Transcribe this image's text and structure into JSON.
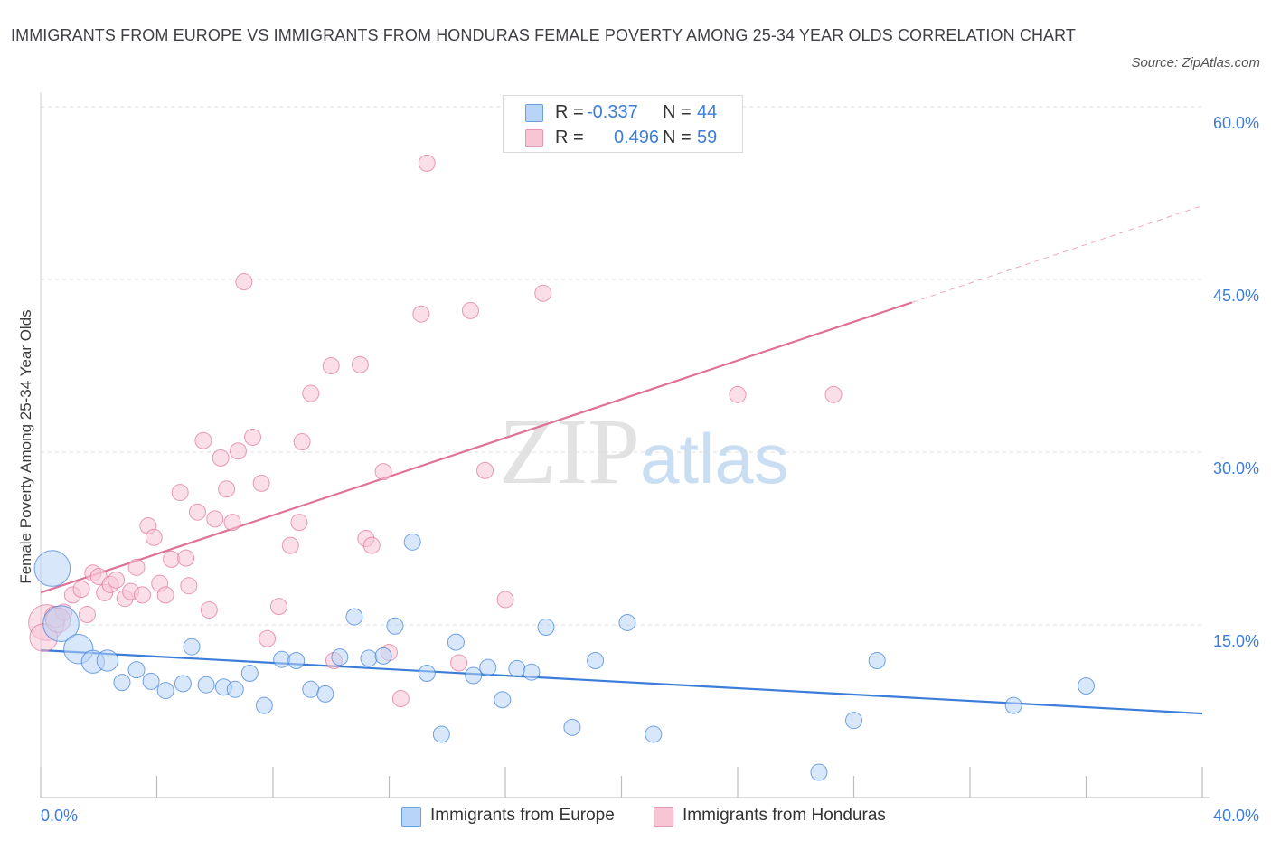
{
  "title": "IMMIGRANTS FROM EUROPE VS IMMIGRANTS FROM HONDURAS FEMALE POVERTY AMONG 25-34 YEAR OLDS CORRELATION CHART",
  "source": "Source: ZipAtlas.com",
  "watermark": {
    "zip": "ZIP",
    "atlas": "atlas"
  },
  "colors": {
    "europe": "#3b7dd8",
    "europe_fill": "#b8d4f6",
    "honduras": "#e0729a",
    "honduras_fill": "#f8c5d5",
    "axis_text": "#3d7dd8"
  },
  "stats": [
    {
      "r_label": "R =",
      "r_value": "-0.337",
      "n_label": "N =",
      "n_value": "44"
    },
    {
      "r_label": "R =",
      "r_value": "0.496",
      "n_label": "N =",
      "n_value": "59"
    }
  ],
  "legend": [
    "Immigrants from Europe",
    "Immigrants from Honduras"
  ],
  "chart_data": {
    "type": "scatter",
    "title": "IMMIGRANTS FROM EUROPE VS IMMIGRANTS FROM HONDURAS FEMALE POVERTY AMONG 25-34 YEAR OLDS CORRELATION CHART",
    "xlabel": "",
    "ylabel": "Female Poverty Among 25-34 Year Olds",
    "xlim": [
      0,
      40
    ],
    "ylim": [
      0,
      60
    ],
    "x_tick_labels": [
      "0.0%",
      "40.0%"
    ],
    "y_ticks": [
      15,
      30,
      45,
      60
    ],
    "y_tick_labels": [
      "15.0%",
      "30.0%",
      "45.0%",
      "60.0%"
    ],
    "grid": true,
    "legend_position": "bottom",
    "series": [
      {
        "name": "Immigrants from Europe",
        "trendline": {
          "x": [
            0,
            40
          ],
          "y": [
            12.8,
            7.3
          ]
        },
        "points": [
          {
            "x": 0.4,
            "y": 19.9,
            "s": 2.2
          },
          {
            "x": 0.7,
            "y": 15.1,
            "s": 2.2
          },
          {
            "x": 1.3,
            "y": 12.9,
            "s": 1.8
          },
          {
            "x": 1.8,
            "y": 11.8,
            "s": 1.4
          },
          {
            "x": 2.3,
            "y": 11.9,
            "s": 1.3
          },
          {
            "x": 2.8,
            "y": 10.0,
            "s": 1
          },
          {
            "x": 3.3,
            "y": 11.1,
            "s": 1
          },
          {
            "x": 3.8,
            "y": 10.1,
            "s": 1
          },
          {
            "x": 4.3,
            "y": 9.3,
            "s": 1
          },
          {
            "x": 4.9,
            "y": 9.9,
            "s": 1
          },
          {
            "x": 5.2,
            "y": 13.1,
            "s": 1
          },
          {
            "x": 5.7,
            "y": 9.8,
            "s": 1
          },
          {
            "x": 6.3,
            "y": 9.6,
            "s": 1
          },
          {
            "x": 6.7,
            "y": 9.4,
            "s": 1
          },
          {
            "x": 7.2,
            "y": 10.8,
            "s": 1
          },
          {
            "x": 7.7,
            "y": 8.0,
            "s": 1
          },
          {
            "x": 8.3,
            "y": 12.0,
            "s": 1
          },
          {
            "x": 8.8,
            "y": 11.9,
            "s": 1
          },
          {
            "x": 9.3,
            "y": 9.4,
            "s": 1
          },
          {
            "x": 9.8,
            "y": 9.0,
            "s": 1
          },
          {
            "x": 10.3,
            "y": 12.2,
            "s": 1
          },
          {
            "x": 10.8,
            "y": 15.7,
            "s": 1
          },
          {
            "x": 11.3,
            "y": 12.1,
            "s": 1
          },
          {
            "x": 11.8,
            "y": 12.3,
            "s": 1
          },
          {
            "x": 12.2,
            "y": 14.9,
            "s": 1
          },
          {
            "x": 12.8,
            "y": 22.2,
            "s": 1
          },
          {
            "x": 13.3,
            "y": 10.8,
            "s": 1
          },
          {
            "x": 13.8,
            "y": 5.5,
            "s": 1
          },
          {
            "x": 14.3,
            "y": 13.5,
            "s": 1
          },
          {
            "x": 14.9,
            "y": 10.6,
            "s": 1
          },
          {
            "x": 15.4,
            "y": 11.3,
            "s": 1
          },
          {
            "x": 15.9,
            "y": 8.5,
            "s": 1
          },
          {
            "x": 16.4,
            "y": 11.2,
            "s": 1
          },
          {
            "x": 16.9,
            "y": 10.9,
            "s": 1
          },
          {
            "x": 17.4,
            "y": 14.8,
            "s": 1
          },
          {
            "x": 18.3,
            "y": 6.1,
            "s": 1
          },
          {
            "x": 19.1,
            "y": 11.9,
            "s": 1
          },
          {
            "x": 20.2,
            "y": 15.2,
            "s": 1
          },
          {
            "x": 21.1,
            "y": 5.5,
            "s": 1
          },
          {
            "x": 26.8,
            "y": 2.2,
            "s": 1
          },
          {
            "x": 28.0,
            "y": 6.7,
            "s": 1
          },
          {
            "x": 28.8,
            "y": 11.9,
            "s": 1
          },
          {
            "x": 33.5,
            "y": 8.0,
            "s": 1
          },
          {
            "x": 36.0,
            "y": 9.7,
            "s": 1
          }
        ]
      },
      {
        "name": "Immigrants from Honduras",
        "trendline": {
          "x": [
            0,
            30
          ],
          "y": [
            17.8,
            43.0
          ],
          "dashed_extension": {
            "x": [
              30,
              40
            ],
            "y": [
              43.0,
              51.4
            ]
          }
        },
        "points": [
          {
            "x": 0.2,
            "y": 15.2,
            "s": 2.2
          },
          {
            "x": 0.5,
            "y": 15.7,
            "s": 1.3
          },
          {
            "x": 0.8,
            "y": 16.1,
            "s": 1
          },
          {
            "x": 1.1,
            "y": 17.6,
            "s": 1
          },
          {
            "x": 1.4,
            "y": 18.1,
            "s": 1
          },
          {
            "x": 1.6,
            "y": 15.9,
            "s": 1
          },
          {
            "x": 1.8,
            "y": 19.5,
            "s": 1
          },
          {
            "x": 2.0,
            "y": 19.2,
            "s": 1
          },
          {
            "x": 2.2,
            "y": 17.8,
            "s": 1
          },
          {
            "x": 2.4,
            "y": 18.5,
            "s": 1
          },
          {
            "x": 2.6,
            "y": 18.9,
            "s": 1
          },
          {
            "x": 2.9,
            "y": 17.3,
            "s": 1
          },
          {
            "x": 3.1,
            "y": 17.9,
            "s": 1
          },
          {
            "x": 3.3,
            "y": 20.0,
            "s": 1
          },
          {
            "x": 3.5,
            "y": 17.6,
            "s": 1
          },
          {
            "x": 3.7,
            "y": 23.6,
            "s": 1
          },
          {
            "x": 3.9,
            "y": 22.6,
            "s": 1
          },
          {
            "x": 4.1,
            "y": 18.6,
            "s": 1
          },
          {
            "x": 4.3,
            "y": 17.6,
            "s": 1
          },
          {
            "x": 4.5,
            "y": 20.7,
            "s": 1
          },
          {
            "x": 4.8,
            "y": 26.5,
            "s": 1
          },
          {
            "x": 5.0,
            "y": 20.8,
            "s": 1
          },
          {
            "x": 5.1,
            "y": 18.4,
            "s": 1
          },
          {
            "x": 5.4,
            "y": 24.8,
            "s": 1
          },
          {
            "x": 5.6,
            "y": 31.0,
            "s": 1
          },
          {
            "x": 5.8,
            "y": 16.3,
            "s": 1
          },
          {
            "x": 6.0,
            "y": 24.2,
            "s": 1
          },
          {
            "x": 6.2,
            "y": 29.5,
            "s": 1
          },
          {
            "x": 6.4,
            "y": 26.8,
            "s": 1
          },
          {
            "x": 6.6,
            "y": 23.9,
            "s": 1
          },
          {
            "x": 6.8,
            "y": 30.1,
            "s": 1
          },
          {
            "x": 7.0,
            "y": 44.8,
            "s": 1
          },
          {
            "x": 7.3,
            "y": 31.3,
            "s": 1
          },
          {
            "x": 7.6,
            "y": 27.3,
            "s": 1
          },
          {
            "x": 7.8,
            "y": 13.8,
            "s": 1
          },
          {
            "x": 8.2,
            "y": 16.6,
            "s": 1
          },
          {
            "x": 8.6,
            "y": 21.9,
            "s": 1
          },
          {
            "x": 8.9,
            "y": 23.9,
            "s": 1
          },
          {
            "x": 9.0,
            "y": 30.9,
            "s": 1
          },
          {
            "x": 9.3,
            "y": 35.1,
            "s": 1
          },
          {
            "x": 10.0,
            "y": 37.5,
            "s": 1
          },
          {
            "x": 10.1,
            "y": 11.9,
            "s": 1
          },
          {
            "x": 11.0,
            "y": 37.6,
            "s": 1
          },
          {
            "x": 11.2,
            "y": 22.5,
            "s": 1
          },
          {
            "x": 11.4,
            "y": 21.9,
            "s": 1
          },
          {
            "x": 11.8,
            "y": 28.3,
            "s": 1
          },
          {
            "x": 12.0,
            "y": 12.6,
            "s": 1
          },
          {
            "x": 12.4,
            "y": 8.6,
            "s": 1
          },
          {
            "x": 13.1,
            "y": 42.0,
            "s": 1
          },
          {
            "x": 13.3,
            "y": 55.1,
            "s": 1
          },
          {
            "x": 14.4,
            "y": 11.7,
            "s": 1
          },
          {
            "x": 14.8,
            "y": 42.3,
            "s": 1
          },
          {
            "x": 15.3,
            "y": 28.4,
            "s": 1
          },
          {
            "x": 16.0,
            "y": 17.2,
            "s": 1
          },
          {
            "x": 17.3,
            "y": 43.8,
            "s": 1
          },
          {
            "x": 24.0,
            "y": 35.0,
            "s": 1
          },
          {
            "x": 27.3,
            "y": 35.0,
            "s": 1
          },
          {
            "x": 0.1,
            "y": 13.9,
            "s": 1.7
          },
          {
            "x": 0.6,
            "y": 15.4,
            "s": 1.5
          }
        ]
      }
    ]
  }
}
